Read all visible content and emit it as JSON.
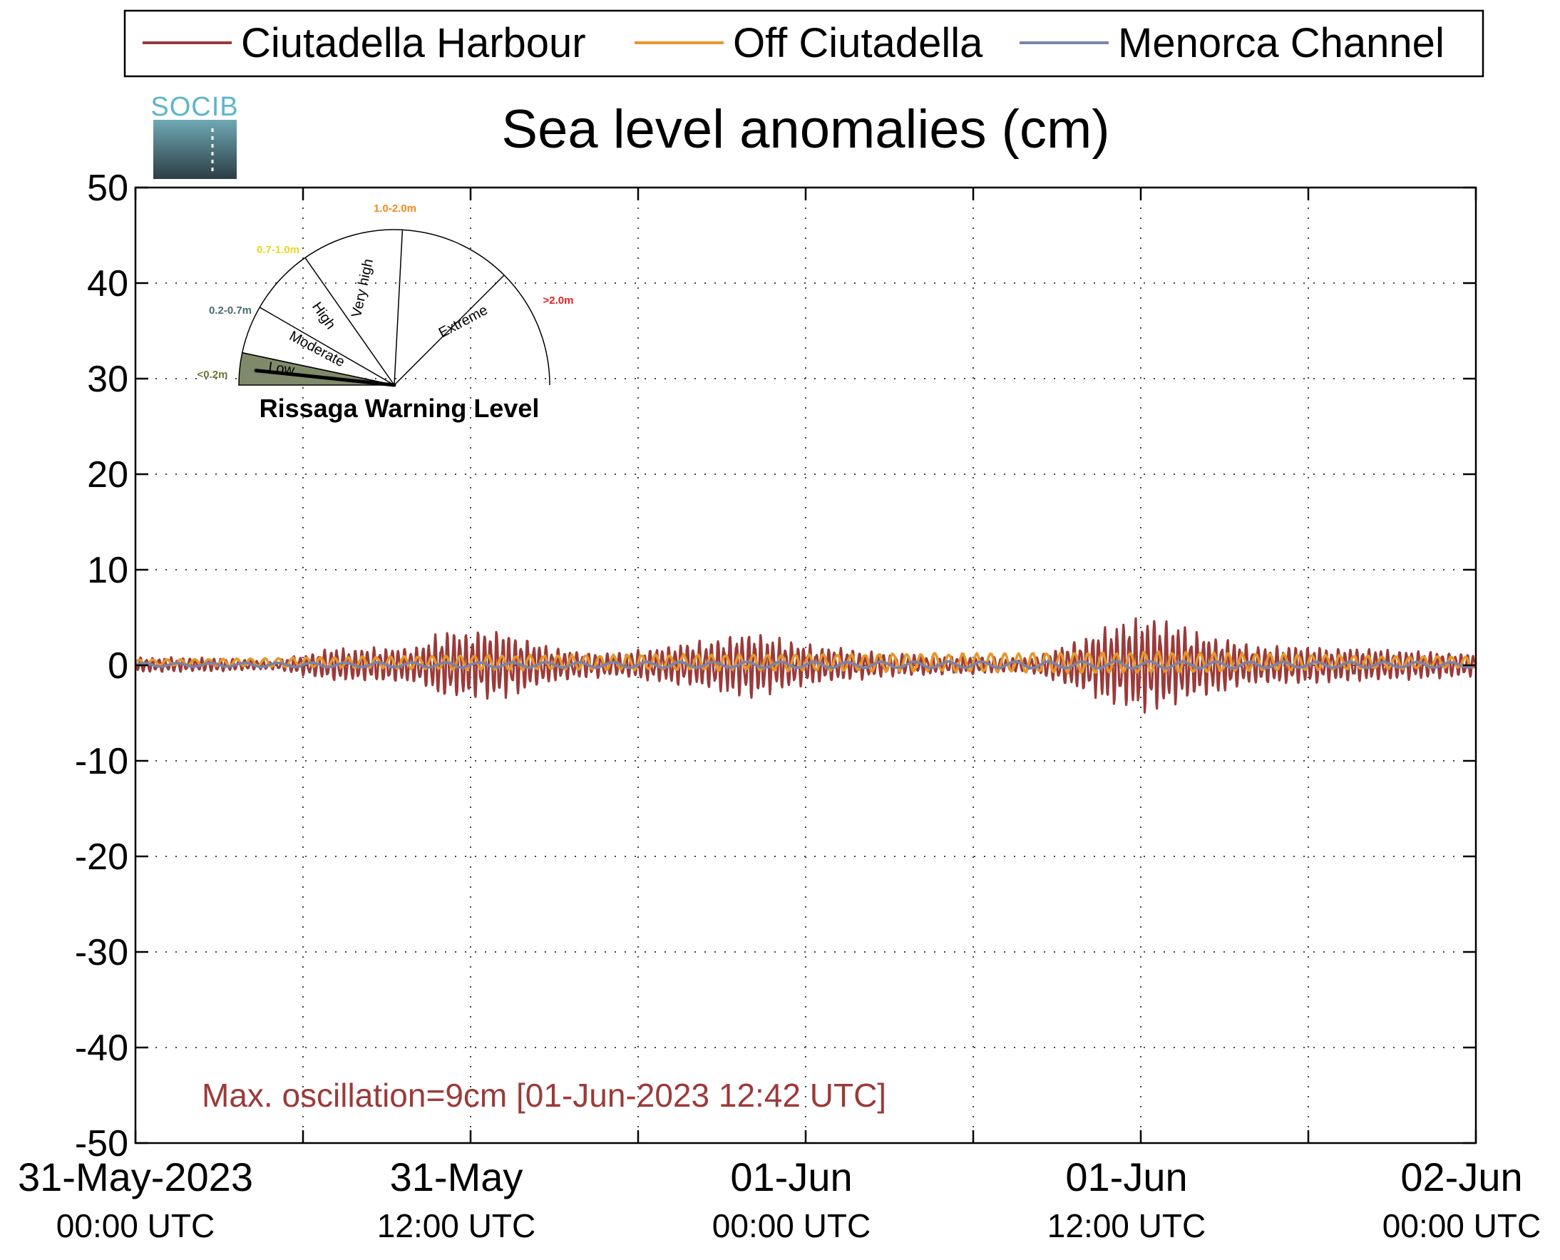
{
  "chart_data": {
    "type": "line",
    "title": "Sea level anomalies (cm)",
    "xlabel": "",
    "ylabel": "",
    "ylim": [
      -50,
      50
    ],
    "yticks": [
      50,
      40,
      30,
      20,
      10,
      0,
      -10,
      -20,
      -30,
      -40,
      -50
    ],
    "xlim": [
      "2023-05-31 00:00",
      "2023-06-02 00:00"
    ],
    "xticks": [
      {
        "date": "31-May-2023",
        "time": "00:00 UTC",
        "t": "2023-05-31 00:00"
      },
      {
        "date": "31-May",
        "time": "12:00 UTC",
        "t": "2023-05-31 12:00"
      },
      {
        "date": "01-Jun",
        "time": "00:00 UTC",
        "t": "2023-06-01 00:00"
      },
      {
        "date": "01-Jun",
        "time": "12:00 UTC",
        "t": "2023-06-01 12:00"
      },
      {
        "date": "02-Jun",
        "time": "00:00 UTC",
        "t": "2023-06-02 00:00"
      }
    ],
    "grid": true,
    "legend_position": "top",
    "series": [
      {
        "name": "Ciutadella Harbour",
        "color": "#9b3a3a",
        "envelope": [
          {
            "t": "2023-05-31 00:00",
            "half_range": 0.7
          },
          {
            "t": "2023-05-31 03:00",
            "half_range": 0.6
          },
          {
            "t": "2023-05-31 05:00",
            "half_range": 0.4
          },
          {
            "t": "2023-05-31 07:00",
            "half_range": 1.5
          },
          {
            "t": "2023-05-31 10:00",
            "half_range": 1.6
          },
          {
            "t": "2023-05-31 11:00",
            "half_range": 3.0
          },
          {
            "t": "2023-05-31 13:00",
            "half_range": 3.2
          },
          {
            "t": "2023-05-31 15:00",
            "half_range": 1.5
          },
          {
            "t": "2023-05-31 17:00",
            "half_range": 1.0
          },
          {
            "t": "2023-05-31 20:00",
            "half_range": 2.0
          },
          {
            "t": "2023-05-31 22:00",
            "half_range": 3.0
          },
          {
            "t": "2023-06-01 00:00",
            "half_range": 1.8
          },
          {
            "t": "2023-06-01 03:00",
            "half_range": 1.0
          },
          {
            "t": "2023-06-01 06:00",
            "half_range": 0.8
          },
          {
            "t": "2023-06-01 08:00",
            "half_range": 0.6
          },
          {
            "t": "2023-06-01 10:00",
            "half_range": 2.5
          },
          {
            "t": "2023-06-01 12:00",
            "half_range": 4.5
          },
          {
            "t": "2023-06-01 14:00",
            "half_range": 3.0
          },
          {
            "t": "2023-06-01 16:00",
            "half_range": 1.8
          },
          {
            "t": "2023-06-01 20:00",
            "half_range": 1.5
          },
          {
            "t": "2023-06-02 00:00",
            "half_range": 1.0
          }
        ]
      },
      {
        "name": "Off Ciutadella",
        "color": "#e8962a",
        "envelope": [
          {
            "t": "2023-05-31 00:00",
            "half_range": 0.3
          },
          {
            "t": "2023-05-31 12:00",
            "half_range": 0.8
          },
          {
            "t": "2023-05-31 22:00",
            "half_range": 0.9
          },
          {
            "t": "2023-06-01 12:00",
            "half_range": 1.2
          },
          {
            "t": "2023-06-01 20:00",
            "half_range": 0.8
          },
          {
            "t": "2023-06-02 00:00",
            "half_range": 0.6
          }
        ]
      },
      {
        "name": "Menorca Channel",
        "color": "#7b83a8",
        "envelope": [
          {
            "t": "2023-05-31 00:00",
            "half_range": 0.2
          },
          {
            "t": "2023-05-31 12:00",
            "half_range": 0.3
          },
          {
            "t": "2023-06-01 12:00",
            "half_range": 0.4
          },
          {
            "t": "2023-06-02 00:00",
            "half_range": 0.3
          }
        ]
      }
    ],
    "annotation": "Max. oscillation=9cm [01-Jun-2023 12:42 UTC]",
    "gauge": {
      "title": "Rissaga Warning Level",
      "current_level": "Low",
      "sectors": [
        {
          "label": "Low",
          "range": "<0.2m",
          "range_color": "#6b7a3a",
          "fill": "#7f8a6a"
        },
        {
          "label": "Moderate",
          "range": "0.2-0.7m",
          "range_color": "#4a6b70"
        },
        {
          "label": "High",
          "range": "0.7-1.0m",
          "range_color": "#e8d820"
        },
        {
          "label": "Very high",
          "range": "1.0-2.0m",
          "range_color": "#f08a18"
        },
        {
          "label": "Extreme",
          "range": ">2.0m",
          "range_color": "#e82020"
        }
      ]
    },
    "logo": "SOCIB"
  }
}
